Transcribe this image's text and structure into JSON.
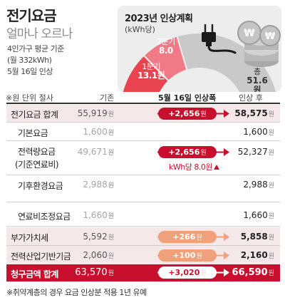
{
  "header": {
    "title": "전기요금",
    "subtitle": "얼마나 오르나",
    "basis_line1": "4인가구 평균 기준",
    "basis_line2": "(월 332kWh)",
    "basis_line3": "5월 16일 인상"
  },
  "plan": {
    "title": "2023년 인상계획",
    "unit": "(kWh당)",
    "segments": [
      {
        "label": "1분기",
        "value": "13.1원",
        "amount": 13.1,
        "color": "#e7444f"
      },
      {
        "label": "2분기",
        "value": "8.0",
        "amount": 8.0,
        "color": "#f07a86"
      },
      {
        "label": "",
        "value": "",
        "amount": 30.5,
        "color": "#c9c9c9"
      }
    ],
    "total_label": "총",
    "total_value": "51.6원",
    "total_amount": 51.6
  },
  "table": {
    "unit_note": "※원 단위 절사",
    "col_before": "기존",
    "col_increase": "5월 16일 인상폭",
    "col_after": "인상 후",
    "won": "원",
    "rows": [
      {
        "label": "전기요금 합계",
        "before": "55,919",
        "increase": "+2,656",
        "after": "58,575"
      },
      {
        "label": "기본요금",
        "before": "1,600",
        "after": "1,600"
      },
      {
        "label": "전력량요금",
        "label2": "(기준연료비)",
        "before": "49,671",
        "increase": "+2,656",
        "after": "52,327",
        "note": "kWh당 8.0원"
      },
      {
        "label": "기후환경요금",
        "before": "2,988",
        "after": "2,988"
      },
      {
        "label": "연료비조정요금",
        "before": "1,660",
        "after": "1,660"
      },
      {
        "label": "부가가치세",
        "before": "5,592",
        "increase": "+266",
        "after": "5,858"
      },
      {
        "label": "전력산업기반기금",
        "before": "2,060",
        "increase": "+100",
        "after": "2,160"
      }
    ],
    "total": {
      "label": "청구금액 합계",
      "before": "63,570",
      "increase": "+3,020",
      "after": "66,590"
    }
  },
  "footnote": "※취약계층의 경우 요금 인상분 적용 1년 유예",
  "colors": {
    "accent": "#c8102e",
    "light_accent": "#f0a07a",
    "pink_row": "#f5e8e9"
  }
}
